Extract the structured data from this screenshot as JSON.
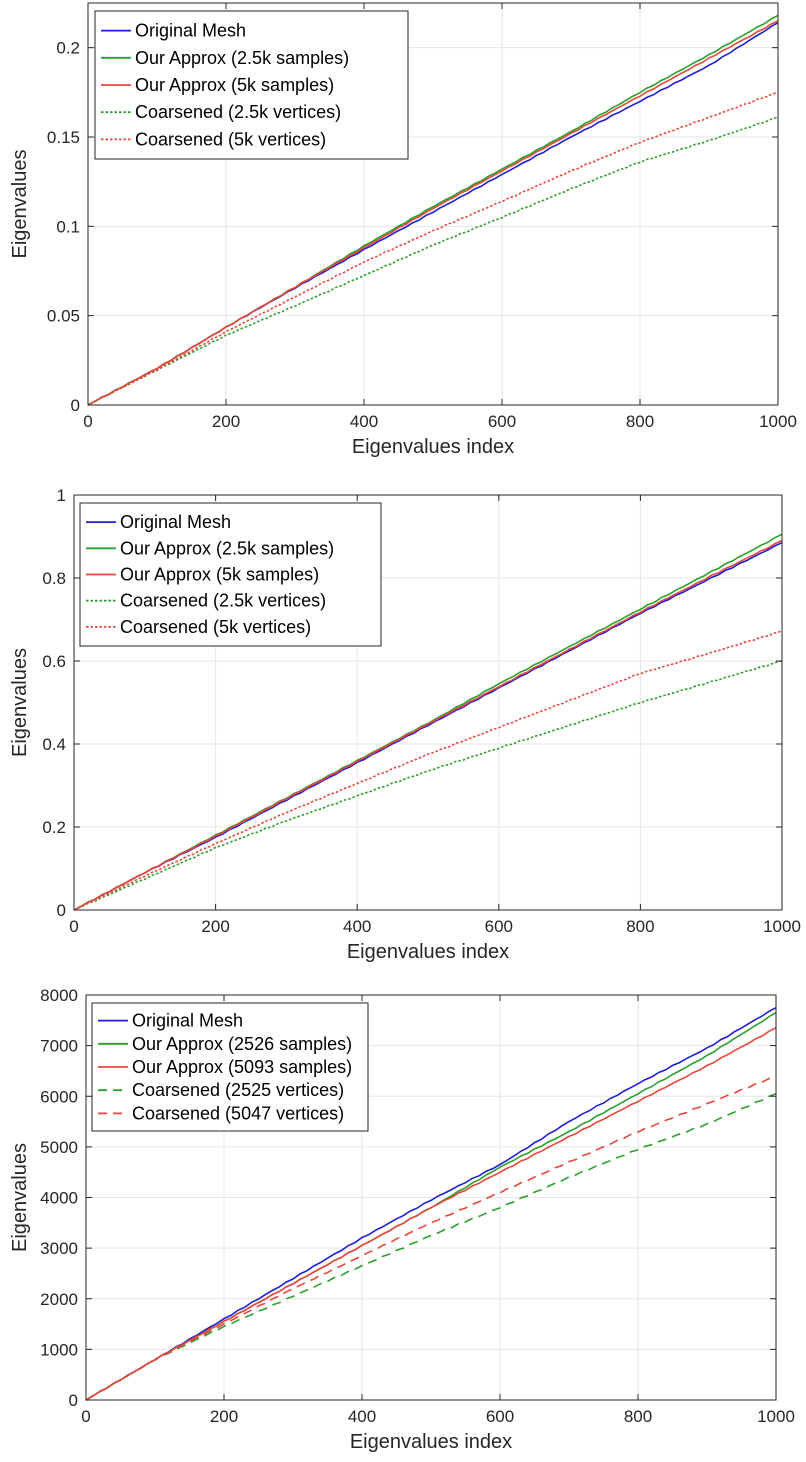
{
  "chart_data": [
    {
      "type": "line",
      "xlabel": "Eigenvalues index",
      "ylabel": "Eigenvalues",
      "xlim": [
        0,
        1000
      ],
      "ylim": [
        0,
        0.225
      ],
      "xticks": [
        "0",
        "200",
        "400",
        "600",
        "800",
        "1000"
      ],
      "yticks": [
        "0",
        "0.05",
        "0.1",
        "0.15",
        "0.2"
      ],
      "grid": true,
      "legend_position": "top-left",
      "series": [
        {
          "name": "Original Mesh",
          "color": "#1f1fd8",
          "style": "solid",
          "x": [
            0,
            100,
            200,
            300,
            400,
            500,
            600,
            700,
            800,
            900,
            1000
          ],
          "y": [
            0,
            0.0205,
            0.0435,
            0.0655,
            0.087,
            0.108,
            0.129,
            0.15,
            0.17,
            0.19,
            0.214
          ]
        },
        {
          "name": "Our Approx (2.5k samples)",
          "color": "#2ca02c",
          "style": "solid",
          "x": [
            0,
            100,
            200,
            300,
            400,
            500,
            600,
            700,
            800,
            900,
            1000
          ],
          "y": [
            0,
            0.0205,
            0.0435,
            0.066,
            0.089,
            0.111,
            0.132,
            0.153,
            0.175,
            0.196,
            0.218
          ]
        },
        {
          "name": "Our Approx (5k samples)",
          "color": "#e8473a",
          "style": "solid",
          "x": [
            0,
            100,
            200,
            300,
            400,
            500,
            600,
            700,
            800,
            900,
            1000
          ],
          "y": [
            0,
            0.0205,
            0.0435,
            0.066,
            0.088,
            0.11,
            0.131,
            0.152,
            0.173,
            0.194,
            0.215
          ]
        },
        {
          "name": "Coarsened (2.5k vertices)",
          "color": "#2ca02c",
          "style": "dotted",
          "x": [
            0,
            100,
            200,
            300,
            400,
            500,
            600,
            700,
            800,
            900,
            1000
          ],
          "y": [
            0,
            0.0195,
            0.039,
            0.0555,
            0.0725,
            0.0895,
            0.105,
            0.121,
            0.136,
            0.148,
            0.161
          ]
        },
        {
          "name": "Coarsened (5k vertices)",
          "color": "#e8473a",
          "style": "dotted",
          "x": [
            0,
            100,
            200,
            300,
            400,
            500,
            600,
            700,
            800,
            900,
            1000
          ],
          "y": [
            0,
            0.0198,
            0.041,
            0.0605,
            0.08,
            0.0975,
            0.114,
            0.131,
            0.147,
            0.161,
            0.175
          ]
        }
      ]
    },
    {
      "type": "line",
      "xlabel": "Eigenvalues index",
      "ylabel": "Eigenvalues",
      "xlim": [
        0,
        1000
      ],
      "ylim": [
        0,
        1
      ],
      "xticks": [
        "0",
        "200",
        "400",
        "600",
        "800",
        "1000"
      ],
      "yticks": [
        "0",
        "0.2",
        "0.4",
        "0.6",
        "0.8",
        "1"
      ],
      "grid": true,
      "legend_position": "top-left",
      "series": [
        {
          "name": "Original Mesh",
          "color": "#1f1fd8",
          "style": "solid",
          "x": [
            0,
            100,
            200,
            300,
            400,
            500,
            600,
            700,
            800,
            900,
            1000
          ],
          "y": [
            0,
            0.09,
            0.175,
            0.265,
            0.355,
            0.445,
            0.535,
            0.625,
            0.715,
            0.8,
            0.885
          ]
        },
        {
          "name": "Our Approx (2.5k samples)",
          "color": "#2ca02c",
          "style": "solid",
          "x": [
            0,
            100,
            200,
            300,
            400,
            500,
            600,
            700,
            800,
            900,
            1000
          ],
          "y": [
            0,
            0.09,
            0.18,
            0.27,
            0.36,
            0.45,
            0.545,
            0.635,
            0.725,
            0.815,
            0.905
          ]
        },
        {
          "name": "Our Approx (5k samples)",
          "color": "#e8473a",
          "style": "solid",
          "x": [
            0,
            100,
            200,
            300,
            400,
            500,
            600,
            700,
            800,
            900,
            1000
          ],
          "y": [
            0,
            0.09,
            0.178,
            0.268,
            0.358,
            0.448,
            0.538,
            0.628,
            0.718,
            0.805,
            0.89
          ]
        },
        {
          "name": "Coarsened (2.5k vertices)",
          "color": "#2ca02c",
          "style": "dotted",
          "x": [
            0,
            100,
            200,
            300,
            400,
            500,
            600,
            700,
            800,
            900,
            1000
          ],
          "y": [
            0,
            0.075,
            0.15,
            0.215,
            0.275,
            0.335,
            0.39,
            0.445,
            0.5,
            0.55,
            0.6
          ]
        },
        {
          "name": "Coarsened (5k vertices)",
          "color": "#e8473a",
          "style": "dotted",
          "x": [
            0,
            100,
            200,
            300,
            400,
            500,
            600,
            700,
            800,
            900,
            1000
          ],
          "y": [
            0,
            0.082,
            0.16,
            0.235,
            0.305,
            0.375,
            0.44,
            0.505,
            0.57,
            0.62,
            0.672
          ]
        }
      ]
    },
    {
      "type": "line",
      "xlabel": "Eigenvalues index",
      "ylabel": "Eigenvalues",
      "xlim": [
        0,
        1000
      ],
      "ylim": [
        0,
        8000
      ],
      "xticks": [
        "0",
        "200",
        "400",
        "600",
        "800",
        "1000"
      ],
      "yticks": [
        "0",
        "1000",
        "2000",
        "3000",
        "4000",
        "5000",
        "6000",
        "7000",
        "8000"
      ],
      "grid": true,
      "legend_position": "top-left",
      "series": [
        {
          "name": "Original Mesh",
          "color": "#1f1fd8",
          "style": "solid",
          "x": [
            0,
            100,
            200,
            300,
            400,
            500,
            600,
            700,
            800,
            900,
            1000
          ],
          "y": [
            0,
            800,
            1600,
            2400,
            3200,
            3950,
            4650,
            5500,
            6250,
            6950,
            7750
          ]
        },
        {
          "name": "Our Approx (2526 samples)",
          "color": "#2ca02c",
          "style": "solid",
          "x": [
            0,
            100,
            200,
            300,
            400,
            500,
            600,
            700,
            800,
            900,
            1000
          ],
          "y": [
            0,
            800,
            1550,
            2300,
            3050,
            3800,
            4600,
            5300,
            6050,
            6800,
            7650
          ]
        },
        {
          "name": "Our Approx (5093 samples)",
          "color": "#e8473a",
          "style": "solid",
          "x": [
            0,
            100,
            200,
            300,
            400,
            500,
            600,
            700,
            800,
            900,
            1000
          ],
          "y": [
            0,
            800,
            1550,
            2300,
            3050,
            3800,
            4500,
            5200,
            5900,
            6600,
            7350
          ]
        },
        {
          "name": "Coarsened (2525 vertices)",
          "color": "#2ca02c",
          "style": "dashed",
          "x": [
            0,
            100,
            200,
            300,
            400,
            500,
            600,
            700,
            800,
            900,
            1000
          ],
          "y": [
            0,
            800,
            1450,
            2050,
            2650,
            3250,
            3800,
            4400,
            4950,
            5450,
            6050
          ]
        },
        {
          "name": "Coarsened (5047 vertices)",
          "color": "#e8473a",
          "style": "dashed",
          "x": [
            0,
            100,
            200,
            300,
            400,
            500,
            600,
            700,
            800,
            900,
            1000
          ],
          "y": [
            0,
            800,
            1500,
            2200,
            2850,
            3500,
            4100,
            4700,
            5300,
            5850,
            6400
          ]
        }
      ]
    }
  ]
}
